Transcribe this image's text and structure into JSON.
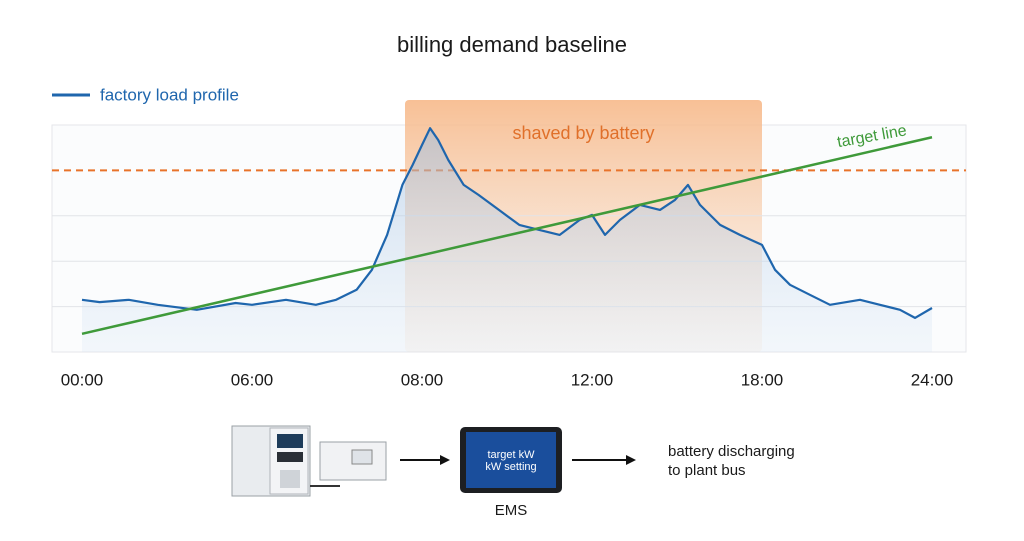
{
  "chart_data": {
    "type": "line",
    "title": "billing demand baseline",
    "legend": "top-left",
    "grid": true,
    "x": [
      0,
      0.62,
      1.65,
      2.67,
      4.05,
      5.42,
      6,
      6.4,
      6.75,
      6.99,
      7.23,
      7.41,
      7.59,
      7.77,
      7.89,
      8,
      8.19,
      8.38,
      8.62,
      8.98,
      9.33,
      9.81,
      10.29,
      10.76,
      11.24,
      11.71,
      12,
      12.46,
      12.99,
      13.69,
      14.4,
      14.93,
      15.39,
      15.81,
      16.52,
      17.22,
      18,
      18.46,
      18.99,
      19.69,
      20.4,
      21.46,
      22.16,
      22.87,
      23.4,
      24
    ],
    "series": [
      {
        "name": "factory load profile",
        "color": "#1f66ad",
        "values": [
          1.15,
          1.1,
          1.15,
          1.04,
          0.93,
          1.08,
          1.04,
          1.15,
          1.04,
          1.15,
          1.37,
          1.81,
          2.58,
          3.68,
          4.12,
          4.56,
          4.93,
          4.67,
          4.23,
          3.68,
          3.46,
          3.13,
          2.8,
          2.69,
          2.58,
          2.91,
          3.02,
          2.58,
          2.91,
          3.24,
          3.13,
          3.35,
          3.68,
          3.24,
          2.8,
          2.58,
          2.36,
          1.81,
          1.48,
          1.26,
          1.04,
          1.15,
          1.04,
          0.93,
          0.75,
          0.97
        ]
      }
    ],
    "target": {
      "name": "target line",
      "color": "#3f9a3a",
      "x": [
        0,
        24
      ],
      "values": [
        0.4,
        4.73
      ]
    },
    "threshold": {
      "value": 4,
      "color": "#e8732a"
    },
    "shaded": {
      "label": "shaved by battery",
      "span": [
        7.8,
        18
      ],
      "color": "#f7b98a"
    },
    "xlim": [
      0,
      24
    ],
    "xticks": [
      {
        "value": 0,
        "label": "00:00"
      },
      {
        "value": 6,
        "label": "06:00"
      },
      {
        "value": 8,
        "label": "08:00"
      },
      {
        "value": 12,
        "label": "12:00"
      },
      {
        "value": 18,
        "label": "18:00"
      },
      {
        "value": 24,
        "label": "24:00"
      }
    ],
    "ylim": [
      0,
      5
    ],
    "yticks": [
      1,
      2,
      3
    ]
  },
  "diagram": {
    "screen_lines": [
      "target kW",
      "kW setting"
    ],
    "device_label": "EMS",
    "result": [
      "battery discharging",
      "to plant bus"
    ]
  }
}
